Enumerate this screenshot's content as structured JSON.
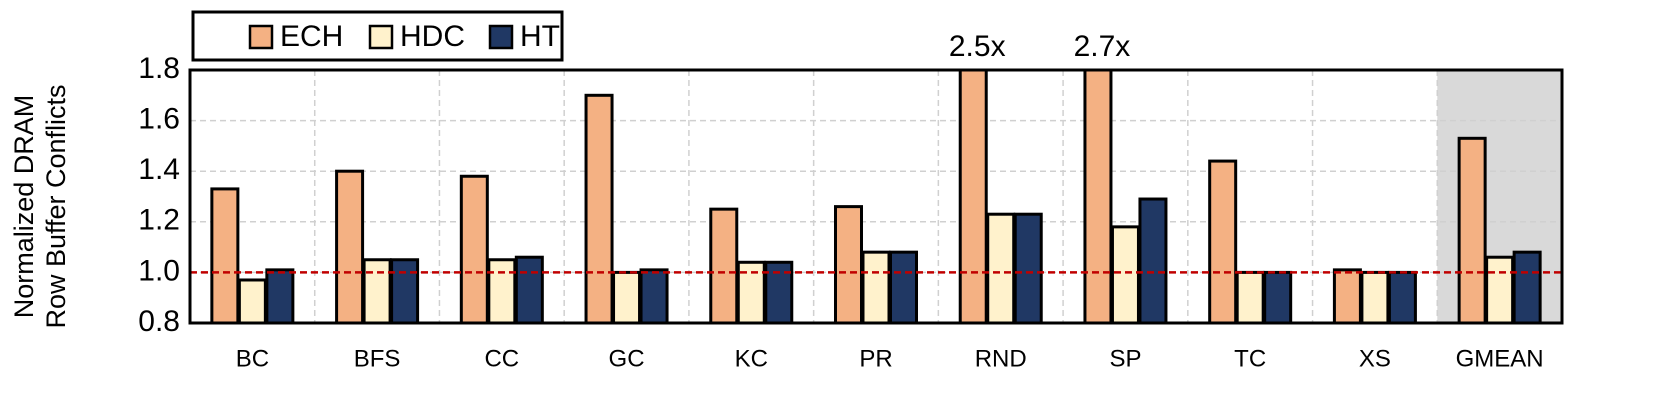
{
  "chart_data": {
    "type": "bar",
    "ylabel": [
      "Normalized DRAM",
      "Row Buffer Conflicts"
    ],
    "categories": [
      "BC",
      "BFS",
      "CC",
      "GC",
      "KC",
      "PR",
      "RND",
      "SP",
      "TC",
      "XS",
      "GMEAN"
    ],
    "series": [
      {
        "name": "ECH",
        "color": "#f4b183",
        "values": [
          1.33,
          1.4,
          1.38,
          1.7,
          1.25,
          1.26,
          2.5,
          2.7,
          1.44,
          1.01,
          1.53
        ],
        "value_labels": [
          null,
          null,
          null,
          null,
          null,
          null,
          "2.5x",
          "2.7x",
          null,
          null,
          null
        ]
      },
      {
        "name": "HDC",
        "color": "#fff2cc",
        "values": [
          0.97,
          1.05,
          1.05,
          1.0,
          1.04,
          1.08,
          1.23,
          1.18,
          1.0,
          1.0,
          1.06
        ]
      },
      {
        "name": "HT",
        "color": "#203864",
        "values": [
          1.01,
          1.05,
          1.06,
          1.01,
          1.04,
          1.08,
          1.23,
          1.29,
          1.0,
          1.0,
          1.08
        ]
      }
    ],
    "ylim": [
      0.8,
      1.8
    ],
    "yticks": [
      0.8,
      {
        "value": 1.0,
        "label": "1.0"
      },
      1.2,
      1.4,
      1.6,
      1.8
    ],
    "grid": true,
    "reference_line": 1,
    "reference_color": "#c00000",
    "shaded_category": "GMEAN",
    "legend": "top"
  }
}
